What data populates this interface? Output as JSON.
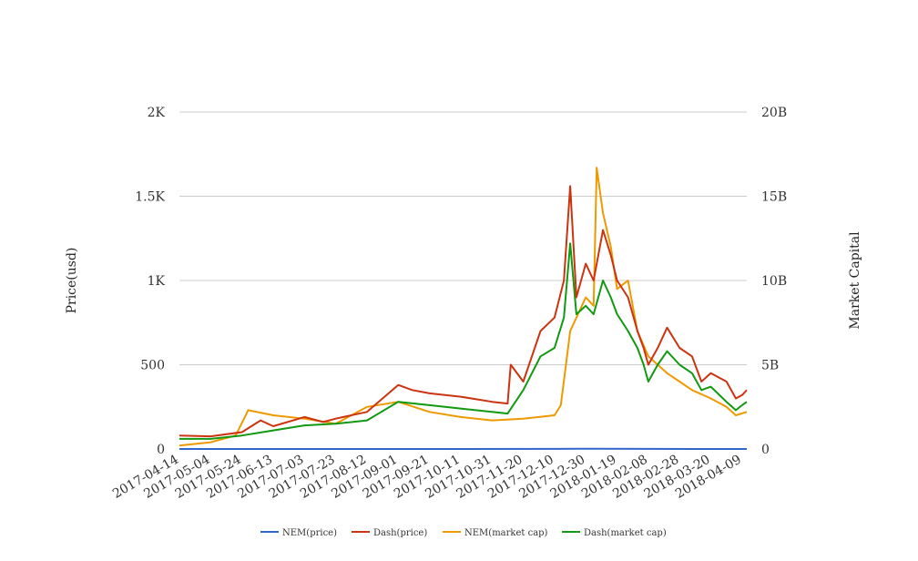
{
  "chart_data": {
    "type": "line",
    "title": "",
    "x_ticks": [
      "2017-04-14",
      "2017-05-04",
      "2017-05-24",
      "2017-06-13",
      "2017-07-03",
      "2017-07-23",
      "2017-08-12",
      "2017-09-01",
      "2017-09-21",
      "2017-10-11",
      "2017-10-31",
      "2017-11-20",
      "2017-12-10",
      "2017-12-30",
      "2018-01-19",
      "2018-02-08",
      "2018-02-28",
      "2018-03-20",
      "2018-04-09"
    ],
    "x_range": [
      "2017-04-14",
      "2018-04-12"
    ],
    "y_left": {
      "label": "Price(usd)",
      "range": [
        0,
        2000
      ],
      "ticks": [
        0,
        500,
        1000,
        1500,
        2000
      ],
      "tick_labels": [
        "0",
        "500",
        "1K",
        "1.5K",
        "2K"
      ]
    },
    "y_right": {
      "label": "Market Capital",
      "range": [
        0,
        20000000000
      ],
      "ticks": [
        0,
        5000000000,
        10000000000,
        15000000000,
        20000000000
      ],
      "tick_labels": [
        "0",
        "5B",
        "10B",
        "15B",
        "20B"
      ]
    },
    "grid": true,
    "legend_position": "bottom",
    "series": [
      {
        "name": "NEM(price)",
        "axis": "left",
        "color": "#3366cc",
        "x": [
          "2017-04-14",
          "2017-06-13",
          "2017-08-12",
          "2017-10-11",
          "2017-12-10",
          "2018-01-07",
          "2018-02-08",
          "2018-03-20",
          "2018-04-12"
        ],
        "y": [
          0.01,
          0.2,
          0.25,
          0.2,
          0.5,
          1.6,
          0.6,
          0.25,
          0.24
        ]
      },
      {
        "name": "Dash(price)",
        "axis": "left",
        "color": "#cc3311",
        "x": [
          "2017-04-14",
          "2017-05-04",
          "2017-05-24",
          "2017-06-05",
          "2017-06-13",
          "2017-07-03",
          "2017-07-15",
          "2017-07-23",
          "2017-08-12",
          "2017-08-22",
          "2017-09-01",
          "2017-09-10",
          "2017-09-21",
          "2017-10-11",
          "2017-10-31",
          "2017-11-10",
          "2017-11-12",
          "2017-11-20",
          "2017-12-01",
          "2017-12-10",
          "2017-12-16",
          "2017-12-20",
          "2017-12-24",
          "2017-12-30",
          "2018-01-04",
          "2018-01-10",
          "2018-01-15",
          "2018-01-19",
          "2018-01-26",
          "2018-02-01",
          "2018-02-05",
          "2018-02-08",
          "2018-02-14",
          "2018-02-20",
          "2018-02-28",
          "2018-03-08",
          "2018-03-14",
          "2018-03-20",
          "2018-03-30",
          "2018-04-05",
          "2018-04-09",
          "2018-04-12"
        ],
        "y": [
          80,
          75,
          100,
          170,
          135,
          190,
          160,
          180,
          220,
          300,
          380,
          350,
          330,
          310,
          280,
          270,
          500,
          400,
          700,
          780,
          1000,
          1560,
          900,
          1100,
          1000,
          1300,
          1150,
          1000,
          900,
          700,
          600,
          500,
          600,
          720,
          600,
          550,
          400,
          450,
          400,
          300,
          320,
          350
        ]
      },
      {
        "name": "NEM(market cap)",
        "axis": "right",
        "color": "#ee9900",
        "x": [
          "2017-04-14",
          "2017-05-04",
          "2017-05-20",
          "2017-05-28",
          "2017-06-13",
          "2017-07-03",
          "2017-07-23",
          "2017-08-12",
          "2017-09-01",
          "2017-09-21",
          "2017-10-11",
          "2017-10-31",
          "2017-11-20",
          "2017-12-10",
          "2017-12-14",
          "2017-12-20",
          "2017-12-30",
          "2018-01-04",
          "2018-01-06",
          "2018-01-10",
          "2018-01-15",
          "2018-01-19",
          "2018-01-26",
          "2018-02-01",
          "2018-02-08",
          "2018-02-14",
          "2018-02-20",
          "2018-02-28",
          "2018-03-08",
          "2018-03-20",
          "2018-03-30",
          "2018-04-05",
          "2018-04-12"
        ],
        "y": [
          200000000,
          400000000,
          800000000,
          2300000000,
          2000000000,
          1800000000,
          1500000000,
          2500000000,
          2800000000,
          2200000000,
          1900000000,
          1700000000,
          1800000000,
          2000000000,
          2600000000,
          7000000000,
          9000000000,
          8500000000,
          16700000000,
          14000000000,
          12000000000,
          9500000000,
          10000000000,
          7000000000,
          5500000000,
          5000000000,
          4500000000,
          4000000000,
          3500000000,
          3000000000,
          2500000000,
          2000000000,
          2200000000
        ]
      },
      {
        "name": "Dash(market cap)",
        "axis": "right",
        "color": "#119911",
        "x": [
          "2017-04-14",
          "2017-05-04",
          "2017-05-24",
          "2017-06-13",
          "2017-07-03",
          "2017-07-23",
          "2017-08-12",
          "2017-09-01",
          "2017-09-21",
          "2017-10-11",
          "2017-10-31",
          "2017-11-10",
          "2017-11-20",
          "2017-12-01",
          "2017-12-10",
          "2017-12-16",
          "2017-12-20",
          "2017-12-24",
          "2017-12-30",
          "2018-01-04",
          "2018-01-10",
          "2018-01-15",
          "2018-01-19",
          "2018-01-26",
          "2018-02-01",
          "2018-02-05",
          "2018-02-08",
          "2018-02-14",
          "2018-02-20",
          "2018-02-28",
          "2018-03-08",
          "2018-03-14",
          "2018-03-20",
          "2018-03-30",
          "2018-04-05",
          "2018-04-09",
          "2018-04-12"
        ],
        "y": [
          600000000,
          600000000,
          800000000,
          1100000000,
          1400000000,
          1500000000,
          1700000000,
          2800000000,
          2600000000,
          2400000000,
          2200000000,
          2100000000,
          3500000000,
          5500000000,
          6000000000,
          7800000000,
          12200000000,
          8000000000,
          8500000000,
          8000000000,
          10000000000,
          9000000000,
          8000000000,
          7000000000,
          6000000000,
          5000000000,
          4000000000,
          5000000000,
          5800000000,
          5000000000,
          4500000000,
          3500000000,
          3700000000,
          2800000000,
          2300000000,
          2600000000,
          2800000000
        ]
      }
    ]
  }
}
